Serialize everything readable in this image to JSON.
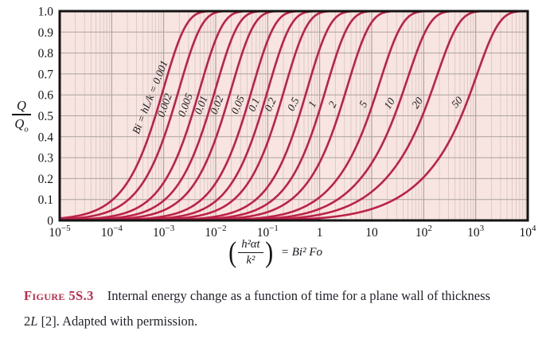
{
  "colors": {
    "page_bg": "#ffffff",
    "plot_bg": "#f8e5e1",
    "grid_minor": "#d3c6c2",
    "grid_major_vertical": "#a29894",
    "grid_horizontal": "#aba19e",
    "frame": "#141414",
    "curve": "#bd2148",
    "tick_text": "#141414",
    "curve_label_text": "#1c1c1c",
    "caption_label": "#c02a4a",
    "caption_text": "#23232e"
  },
  "chart_data": {
    "type": "line",
    "title": "",
    "model_note": "Transient conduction in a plane wall of thickness 2L: Q/Qo plotted versus (h²αt/k²) = Bi² Fo; one curve per Biot number (exact series solution, semi-infinite-solid form at early time).",
    "x_axis": {
      "scale": "log10",
      "min": 1e-05,
      "max": 10000.0,
      "label": {
        "open_paren": "(",
        "numerator": "h²αt",
        "denominator": "k²",
        "close_paren": ")",
        "rhs": "= Bi² Fo"
      },
      "tick_labels": [
        {
          "base": "10",
          "exp": "−5"
        },
        {
          "base": "10",
          "exp": "−4"
        },
        {
          "base": "10",
          "exp": "−3"
        },
        {
          "base": "10",
          "exp": "−2"
        },
        {
          "base": "10",
          "exp": "−1"
        },
        {
          "base": "1",
          "exp": ""
        },
        {
          "base": "10",
          "exp": ""
        },
        {
          "base": "10",
          "exp": "2"
        },
        {
          "base": "10",
          "exp": "3"
        },
        {
          "base": "10",
          "exp": "4"
        }
      ]
    },
    "y_axis": {
      "min": 0,
      "max": 1.0,
      "tick_step": 0.1,
      "label_numerator": "Q",
      "label_denominator": "Q",
      "label_denominator_sub": "o",
      "tick_labels": [
        "1.0",
        "0.9",
        "0.8",
        "0.7",
        "0.6",
        "0.5",
        "0.4",
        "0.3",
        "0.2",
        "0.1",
        "0"
      ]
    },
    "grid": true,
    "legend_position": "labels-along-curves",
    "series": [
      {
        "label": "Bi = hL/k = 0.001",
        "bi": 0.001
      },
      {
        "label": "0.002",
        "bi": 0.002
      },
      {
        "label": "0.005",
        "bi": 0.005
      },
      {
        "label": "0.01",
        "bi": 0.01
      },
      {
        "label": "0.02",
        "bi": 0.02
      },
      {
        "label": "0.05",
        "bi": 0.05
      },
      {
        "label": "0.1",
        "bi": 0.1
      },
      {
        "label": "0.2",
        "bi": 0.2
      },
      {
        "label": "0.5",
        "bi": 0.5
      },
      {
        "label": "1",
        "bi": 1
      },
      {
        "label": "2",
        "bi": 2
      },
      {
        "label": "5",
        "bi": 5
      },
      {
        "label": "10",
        "bi": 10
      },
      {
        "label": "20",
        "bi": 20
      },
      {
        "label": "50",
        "bi": 50
      }
    ]
  },
  "caption": {
    "label": "Figure 5S.3",
    "line1": "Internal energy change as a function of time for a plane wall of thickness",
    "line2_pre": "2",
    "line2_italic": "L",
    "line2_post": " [2]. Adapted with permission."
  }
}
